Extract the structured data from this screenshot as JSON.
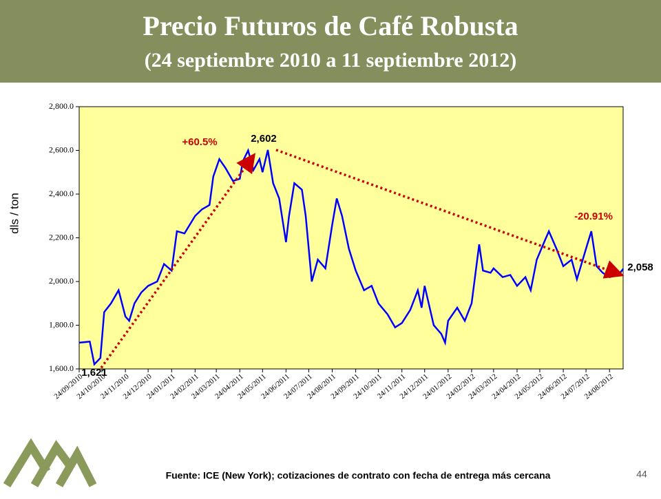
{
  "chart_data": {
    "type": "line",
    "title": "Precio Futuros de Café Robusta",
    "subtitle": "(24 septiembre 2010 a 11 septiembre 2012)",
    "y_label": "dls / ton",
    "source": "Fuente: ICE (New York); cotizaciones de contrato con fecha de entrega más cercana",
    "page_number": "44",
    "annotations": [
      "+60.5%",
      "2,602",
      "-20.91%",
      "1,621",
      "2,058"
    ],
    "xlim": [
      "24/09/2010",
      "11/09/2012"
    ],
    "xticks": [
      "24/09/2010",
      "24/10/2010",
      "24/11/2010",
      "24/12/2010",
      "24/01/2011",
      "24/02/2011",
      "24/03/2011",
      "24/04/2011",
      "24/05/2011",
      "24/06/2011",
      "24/07/2011",
      "24/08/2011",
      "24/09/2011",
      "24/10/2011",
      "24/11/2011",
      "24/12/2011",
      "24/01/2012",
      "24/02/2012",
      "24/03/2012",
      "24/04/2012",
      "24/05/2012",
      "24/06/2012",
      "24/07/2012",
      "24/08/2012"
    ],
    "ylim": [
      1600,
      2800
    ],
    "yticks": [
      {
        "value": 1600,
        "label": "1,600.0"
      },
      {
        "value": 1800,
        "label": "1,800.0"
      },
      {
        "value": 2000,
        "label": "2,000.0"
      },
      {
        "value": 2200,
        "label": "2,200.0"
      },
      {
        "value": 2400,
        "label": "2,400.0"
      },
      {
        "value": 2600,
        "label": "2,600.0"
      },
      {
        "value": 2800,
        "label": "2,800.0"
      }
    ],
    "x": [
      "24/09/2010",
      "08/10/2010",
      "14/10/2010",
      "22/10/2010",
      "27/10/2010",
      "05/11/2010",
      "15/11/2010",
      "24/11/2010",
      "29/11/2010",
      "06/12/2010",
      "15/12/2010",
      "24/12/2010",
      "05/01/2011",
      "14/01/2011",
      "24/01/2011",
      "31/01/2011",
      "10/02/2011",
      "24/02/2011",
      "05/03/2011",
      "15/03/2011",
      "20/03/2011",
      "28/03/2011",
      "05/04/2011",
      "15/04/2011",
      "24/04/2011",
      "28/04/2011",
      "05/05/2011",
      "12/05/2011",
      "20/05/2011",
      "24/05/2011",
      "31/05/2011",
      "07/06/2011",
      "15/06/2011",
      "24/06/2011",
      "28/06/2011",
      "05/07/2011",
      "15/07/2011",
      "20/07/2011",
      "28/07/2011",
      "05/08/2011",
      "15/08/2011",
      "24/08/2011",
      "30/08/2011",
      "06/09/2011",
      "15/09/2011",
      "24/09/2011",
      "05/10/2011",
      "15/10/2011",
      "24/10/2011",
      "05/11/2011",
      "15/11/2011",
      "24/11/2011",
      "05/12/2011",
      "15/12/2011",
      "20/12/2011",
      "24/12/2011",
      "05/01/2012",
      "15/01/2012",
      "20/01/2012",
      "24/01/2012",
      "05/02/2012",
      "15/02/2012",
      "24/02/2012",
      "05/03/2012",
      "10/03/2012",
      "20/03/2012",
      "24/03/2012",
      "05/04/2012",
      "15/04/2012",
      "24/04/2012",
      "05/05/2012",
      "12/05/2012",
      "20/05/2012",
      "31/05/2012",
      "05/06/2012",
      "15/06/2012",
      "24/06/2012",
      "05/07/2012",
      "12/07/2012",
      "24/07/2012",
      "31/07/2012",
      "07/08/2012",
      "15/08/2012",
      "24/08/2012",
      "05/09/2012",
      "11/09/2012"
    ],
    "series": [
      {
        "name": "Robusta",
        "color": "#0000ff",
        "values": [
          1720,
          1725,
          1621,
          1650,
          1860,
          1900,
          1960,
          1840,
          1820,
          1900,
          1950,
          1980,
          2000,
          2080,
          2050,
          2230,
          2220,
          2300,
          2330,
          2350,
          2480,
          2560,
          2520,
          2460,
          2470,
          2550,
          2600,
          2510,
          2560,
          2500,
          2602,
          2450,
          2380,
          2180,
          2300,
          2450,
          2420,
          2300,
          2000,
          2100,
          2060,
          2260,
          2380,
          2300,
          2150,
          2050,
          1960,
          1980,
          1900,
          1850,
          1790,
          1810,
          1870,
          1960,
          1880,
          1980,
          1800,
          1760,
          1720,
          1820,
          1880,
          1820,
          1900,
          2170,
          2050,
          2040,
          2060,
          2020,
          2030,
          1980,
          2020,
          1960,
          2100,
          2190,
          2230,
          2150,
          2070,
          2100,
          2010,
          2150,
          2230,
          2070,
          2040,
          2020,
          2030,
          2058
        ]
      }
    ],
    "background": "#ffff9c",
    "arrow_color": "#cc0000"
  }
}
